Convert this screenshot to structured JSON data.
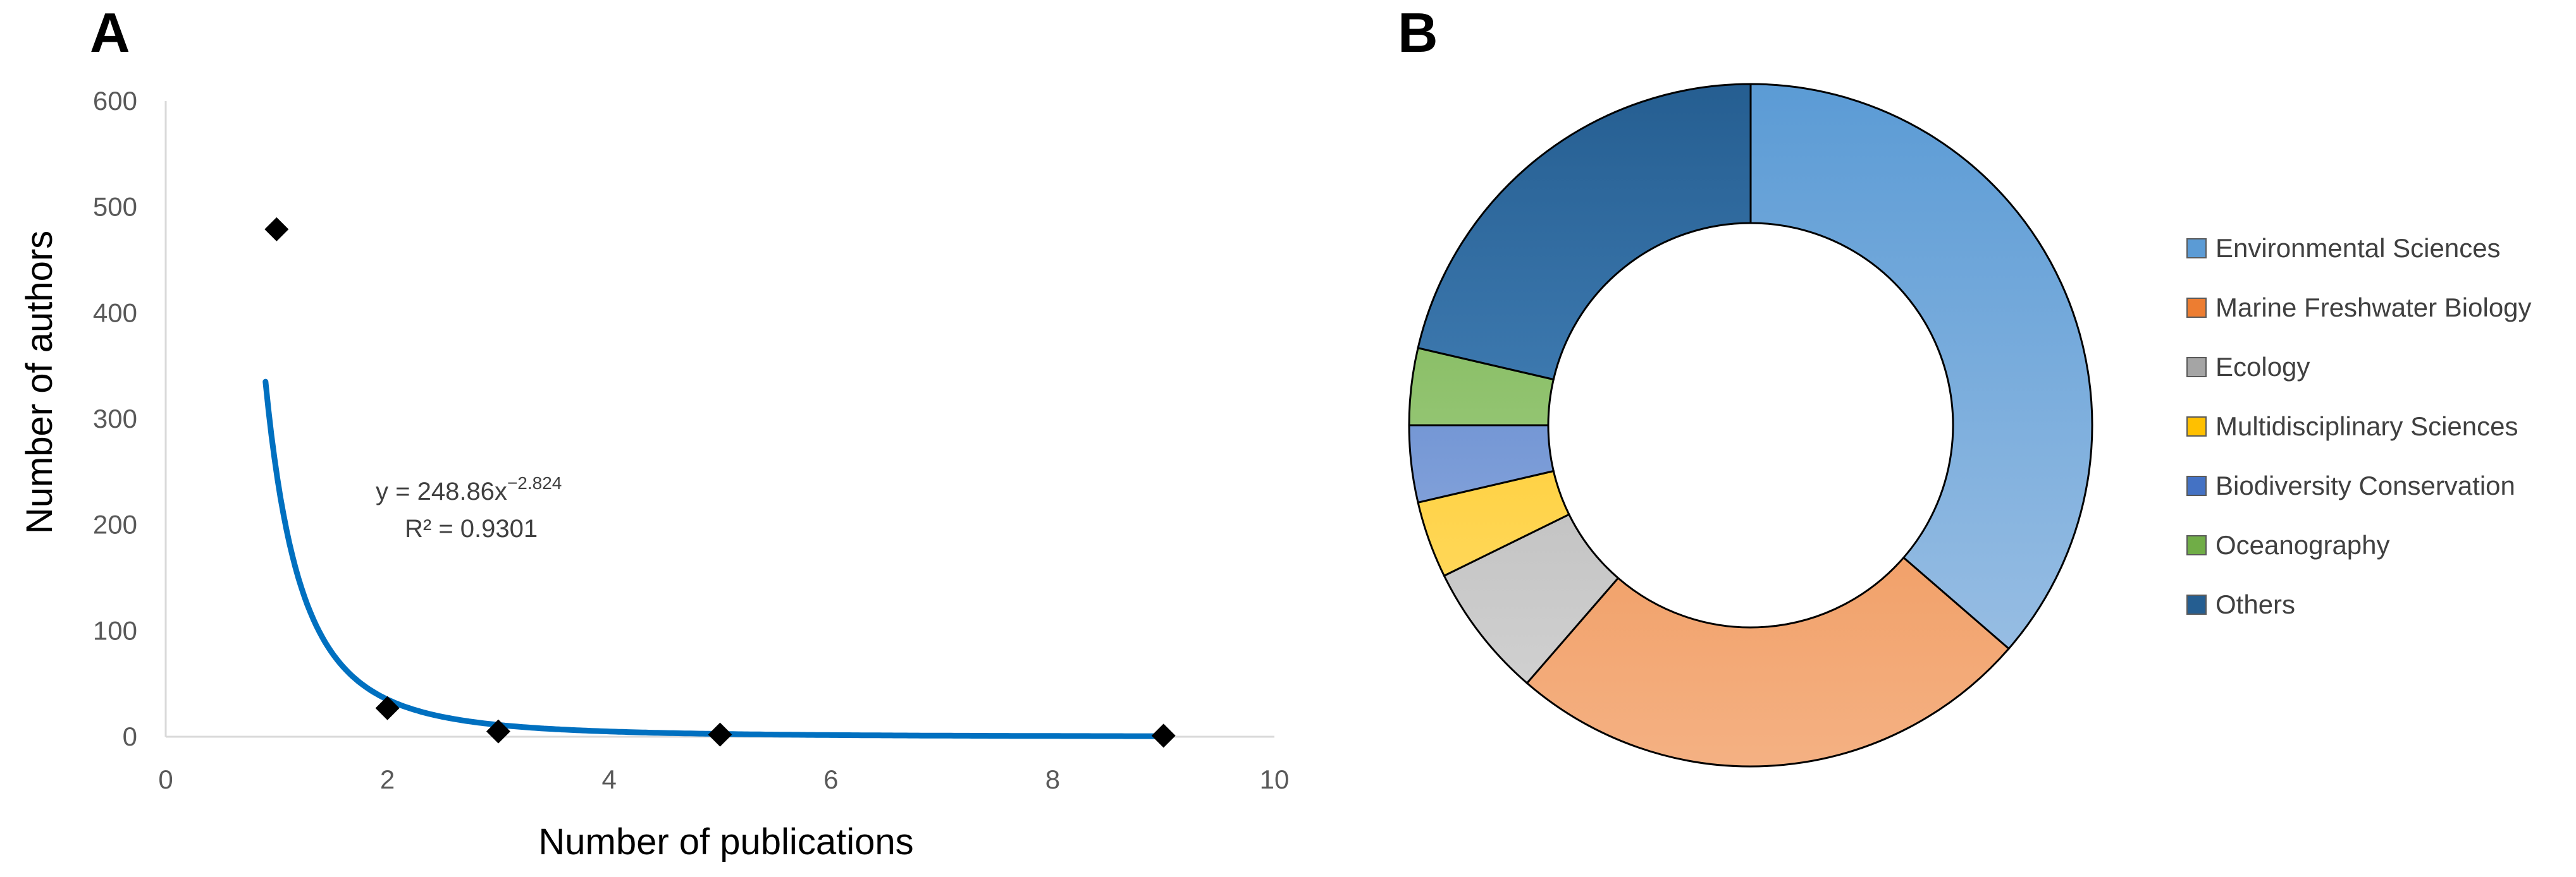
{
  "panels": {
    "a_label": "A",
    "b_label": "B"
  },
  "chart_data": [
    {
      "type": "scatter",
      "panel": "A",
      "xlabel": "Number of publications",
      "ylabel": "Number of authors",
      "xlim": [
        0,
        10
      ],
      "ylim": [
        0,
        600
      ],
      "xticks": [
        0,
        2,
        4,
        6,
        8,
        10
      ],
      "yticks": [
        0,
        100,
        200,
        300,
        400,
        500,
        600
      ],
      "grid": false,
      "points": [
        {
          "x": 1,
          "y": 479
        },
        {
          "x": 2,
          "y": 27
        },
        {
          "x": 3,
          "y": 5
        },
        {
          "x": 5,
          "y": 2
        },
        {
          "x": 9,
          "y": 1
        }
      ],
      "trendline": {
        "type": "power",
        "a": 248.86,
        "b": -2.824,
        "x_start": 0.9,
        "x_end": 9,
        "equation_prefix": "y = 248.86x",
        "equation_exponent": "−2.824",
        "r_squared_label": "R² = 0.9301"
      },
      "colors": {
        "marker": "#000000",
        "trendline": "#0070c0",
        "axis": "#d9d9d9"
      }
    },
    {
      "type": "pie",
      "panel": "B",
      "donut": true,
      "legend_position": "right",
      "slices": [
        {
          "label": "Environmental Sciences",
          "value": 40,
          "color_dark": "#5b9bd5",
          "color_light": "#a3c4e6"
        },
        {
          "label": "Marine Freshwater Biology",
          "value": 27.5,
          "color_dark": "#ed7d31",
          "color_light": "#f4b183"
        },
        {
          "label": "Ecology",
          "value": 7,
          "color_dark": "#a5a5a5",
          "color_light": "#d6d6d6"
        },
        {
          "label": "Multidisciplinary Sciences",
          "value": 4,
          "color_dark": "#ffc000",
          "color_light": "#ffe07a"
        },
        {
          "label": "Biodiversity Conservation",
          "value": 4,
          "color_dark": "#4472c4",
          "color_light": "#a5bce6"
        },
        {
          "label": "Oceanography",
          "value": 4,
          "color_dark": "#70ad47",
          "color_light": "#b6dc9c"
        },
        {
          "label": "Others",
          "value": 23.5,
          "color_dark": "#255e91",
          "color_light": "#5b9bd5"
        }
      ]
    }
  ]
}
